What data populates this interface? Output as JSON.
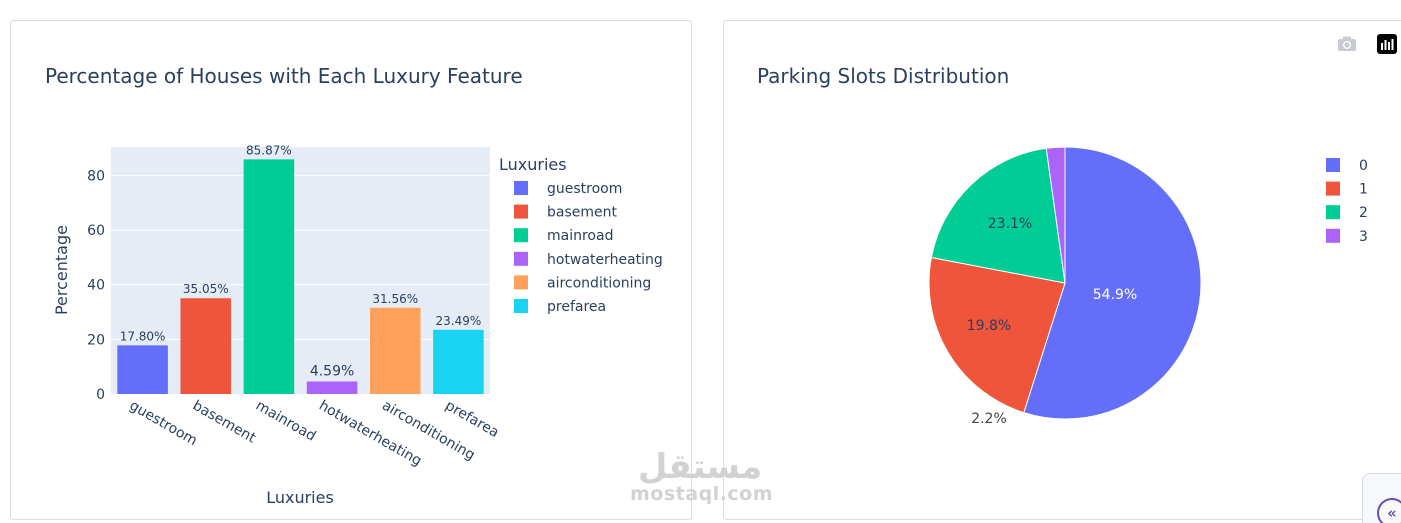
{
  "chart_data": [
    {
      "type": "bar",
      "title": "Percentage of Houses with Each Luxury Feature",
      "xlabel": "Luxuries",
      "ylabel": "Percentage",
      "categories": [
        "guestroom",
        "basement",
        "mainroad",
        "hotwaterheating",
        "airconditioning",
        "prefarea"
      ],
      "values": [
        17.8,
        35.05,
        85.87,
        4.59,
        31.56,
        23.49
      ],
      "data_labels": [
        "17.80%",
        "35.05%",
        "85.87%",
        "4.59%",
        "31.56%",
        "23.49%"
      ],
      "colors": [
        "#636efa",
        "#ef553b",
        "#00cc96",
        "#ab63fa",
        "#ffa15a",
        "#19d3f3"
      ],
      "ylim": [
        0,
        90.4
      ],
      "yticks": [
        0,
        20,
        40,
        60,
        80
      ],
      "legend_title": "Luxuries",
      "legend_placement": "right",
      "grid": true
    },
    {
      "type": "pie",
      "title": "Parking Slots Distribution",
      "labels": [
        "0",
        "1",
        "2",
        "3"
      ],
      "values": [
        54.9,
        23.1,
        19.8,
        2.2
      ],
      "data_labels": [
        "54.9%",
        "23.1%",
        "19.8%",
        "2.2%"
      ],
      "colors": [
        "#636efa",
        "#ef553b",
        "#00cc96",
        "#ab63fa"
      ],
      "legend_placement": "right"
    }
  ],
  "modebar": {
    "camera_icon": "camera-icon",
    "plotly_logo_icon": "plotly-logo-icon"
  },
  "watermark": {
    "arabic": "مستقل",
    "latin": "mostaql.com"
  },
  "side_toggle": {
    "glyph": "«"
  }
}
